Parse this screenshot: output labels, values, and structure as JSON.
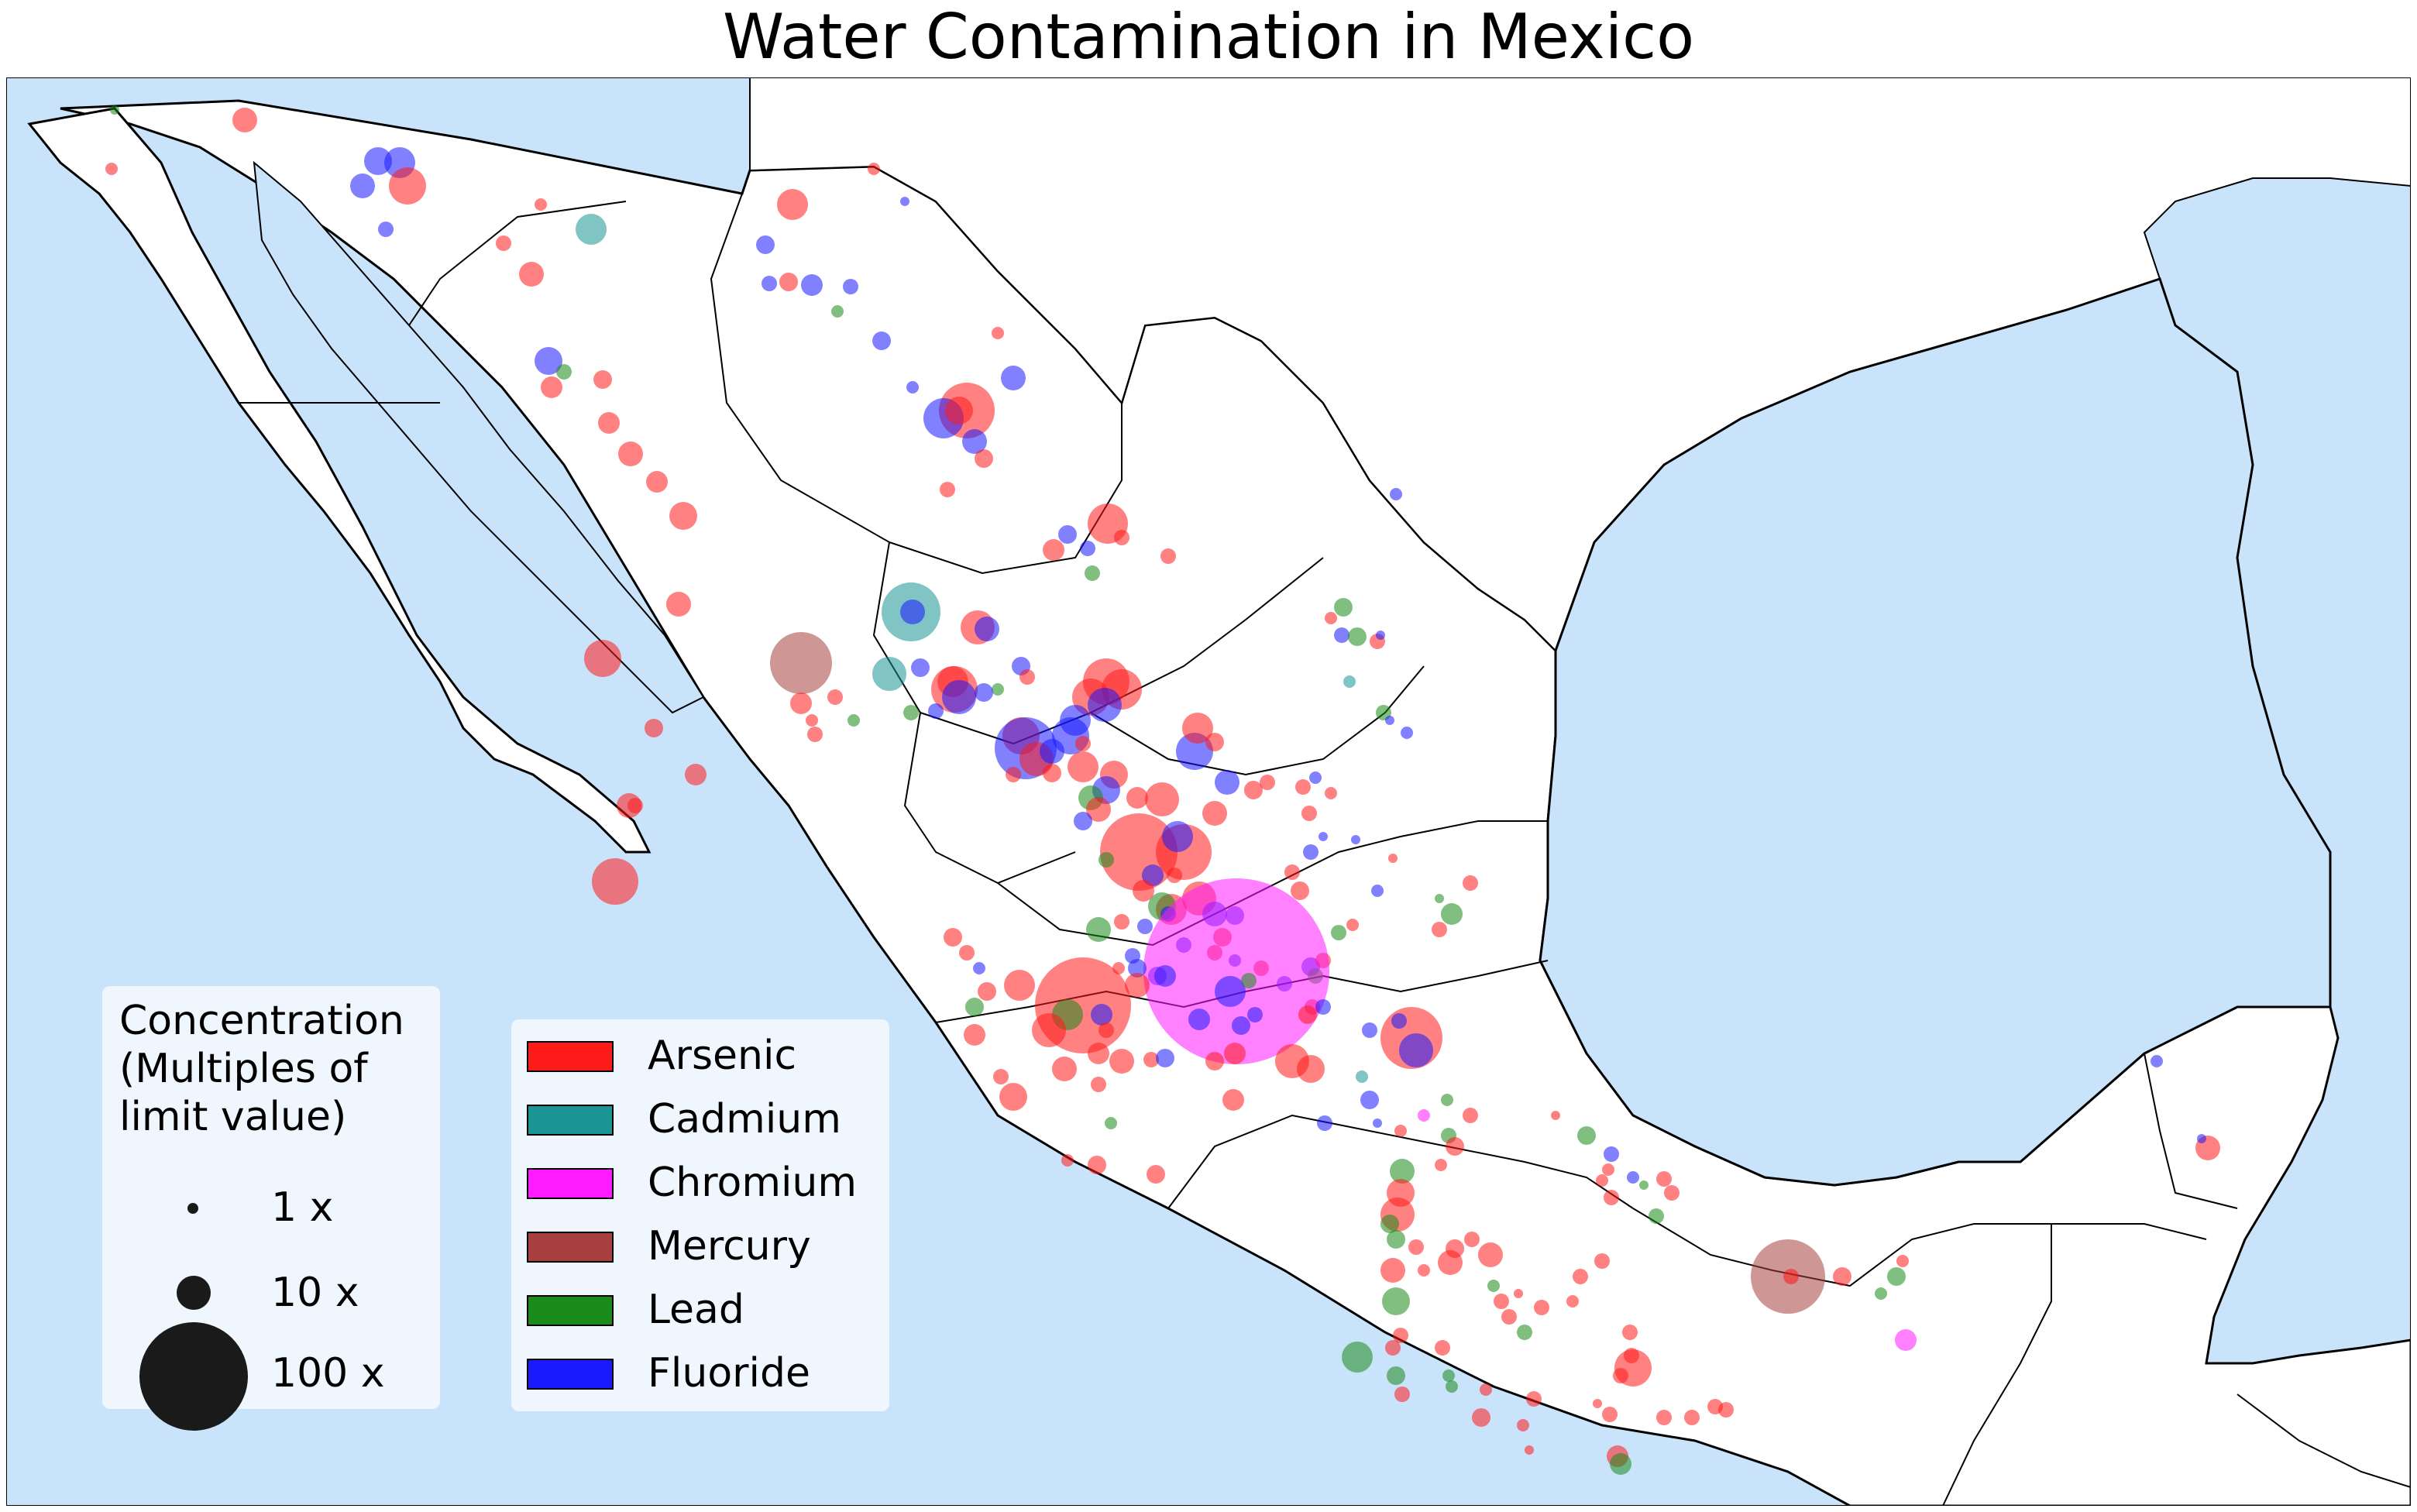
{
  "title": "Water Contamination in Mexico",
  "colors": {
    "water": "#c9e3fb",
    "land": "#ffffff",
    "border": "#000000",
    "legend_bg": "#f0f6fd"
  },
  "size_legend": {
    "title_lines": [
      "Concentration",
      "(Multiples of",
      "limit value)"
    ],
    "entries": [
      {
        "label": "1 x",
        "multiple": 1
      },
      {
        "label": "10 x",
        "multiple": 10
      },
      {
        "label": "100 x",
        "multiple": 100
      }
    ]
  },
  "pollutant_legend": [
    {
      "label": "Arsenic",
      "color": "#ff1a1a"
    },
    {
      "label": "Cadmium",
      "color": "#1a9494"
    },
    {
      "label": "Chromium",
      "color": "#ff1aff"
    },
    {
      "label": "Mercury",
      "color": "#a83f3f"
    },
    {
      "label": "Lead",
      "color": "#1a8a1a"
    },
    {
      "label": "Fluoride",
      "color": "#1a1aff"
    }
  ]
}
